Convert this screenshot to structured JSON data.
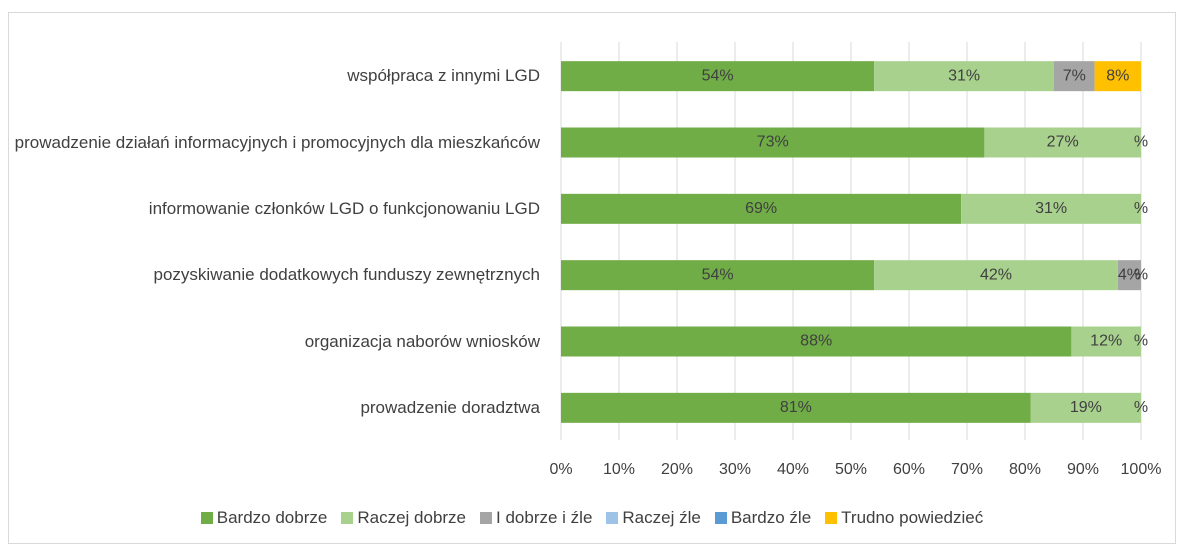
{
  "chart_data": {
    "type": "stacked_barh",
    "categories": [
      "współpraca z innymi LGD",
      "prowadzenie działań informacyjnych i promocyjnych dla mieszkańców",
      "informowanie członków LGD o funkcjonowaniu LGD",
      "pozyskiwanie dodatkowych funduszy zewnętrznych",
      "organizacja naborów wniosków",
      "prowadzenie doradztwa"
    ],
    "series": [
      {
        "name": "Bardzo dobrze",
        "color": "#70ad47",
        "values": [
          54,
          73,
          69,
          54,
          88,
          81
        ],
        "value_labels": [
          "54%",
          "73%",
          "69%",
          "54%",
          "88%",
          "81%"
        ]
      },
      {
        "name": "Raczej dobrze",
        "color": "#a9d18e",
        "values": [
          31,
          27,
          31,
          42,
          12,
          19
        ],
        "value_labels": [
          "31%",
          "27%",
          "31%",
          "42%",
          "12%",
          "19%"
        ]
      },
      {
        "name": "I dobrze i źle",
        "color": "#a5a5a5",
        "values": [
          7,
          0,
          0,
          4,
          0,
          0
        ],
        "value_labels": [
          "7%",
          null,
          null,
          "4%",
          null,
          null
        ]
      },
      {
        "name": "Raczej źle",
        "color": "#9dc3e6",
        "values": [
          0,
          0,
          0,
          0,
          0,
          0
        ]
      },
      {
        "name": "Bardzo źle",
        "color": "#5b9bd5",
        "values": [
          0,
          0,
          0,
          0,
          0,
          0
        ]
      },
      {
        "name": "Trudno powiedzieć",
        "color": "#ffc000",
        "values": [
          8,
          0,
          0,
          0,
          0,
          0
        ],
        "value_labels": [
          "8%",
          "%",
          "%",
          "%",
          "%",
          "%"
        ]
      }
    ],
    "xlim": [
      0,
      100
    ],
    "xticks": [
      {
        "value": 0,
        "label": "0%"
      },
      {
        "value": 10,
        "label": "10%"
      },
      {
        "value": 20,
        "label": "20%"
      },
      {
        "value": 30,
        "label": "30%"
      },
      {
        "value": 40,
        "label": "40%"
      },
      {
        "value": 50,
        "label": "50%"
      },
      {
        "value": 60,
        "label": "60%"
      },
      {
        "value": 70,
        "label": "70%"
      },
      {
        "value": 80,
        "label": "80%"
      },
      {
        "value": 90,
        "label": "90%"
      },
      {
        "value": 100,
        "label": "100%"
      }
    ],
    "grid": true,
    "legend": "bottom"
  }
}
